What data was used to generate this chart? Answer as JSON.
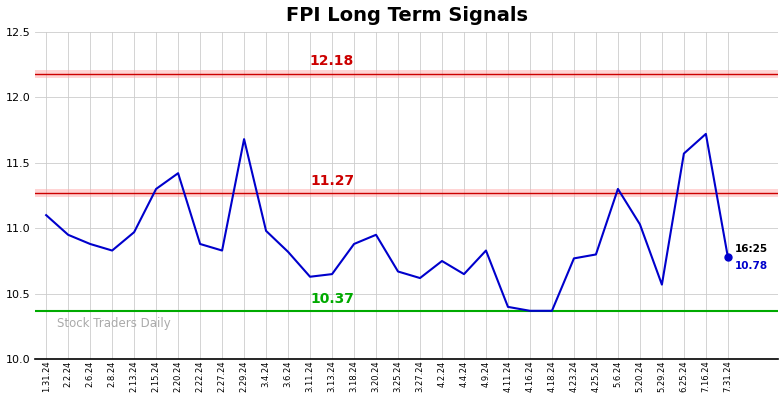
{
  "title": "FPI Long Term Signals",
  "x_labels": [
    "1.31.24",
    "2.2.24",
    "2.6.24",
    "2.8.24",
    "2.13.24",
    "2.15.24",
    "2.20.24",
    "2.22.24",
    "2.27.24",
    "2.29.24",
    "3.4.24",
    "3.6.24",
    "3.11.24",
    "3.13.24",
    "3.18.24",
    "3.20.24",
    "3.25.24",
    "3.27.24",
    "4.2.24",
    "4.4.24",
    "4.9.24",
    "4.11.24",
    "4.16.24",
    "4.18.24",
    "4.23.24",
    "4.25.24",
    "5.6.24",
    "5.20.24",
    "5.29.24",
    "6.25.24",
    "7.16.24",
    "7.31.24"
  ],
  "y_values": [
    11.1,
    10.95,
    10.88,
    10.83,
    10.97,
    11.3,
    11.42,
    10.88,
    10.83,
    11.68,
    10.98,
    10.82,
    10.63,
    10.65,
    10.88,
    10.95,
    10.67,
    10.62,
    10.75,
    10.65,
    10.83,
    10.4,
    10.37,
    10.37,
    10.77,
    10.8,
    11.3,
    11.03,
    10.57,
    11.57,
    11.72,
    10.78
  ],
  "line_color": "#0000cc",
  "dot_color": "#0000cc",
  "hline_upper": 12.18,
  "hline_upper_color": "#cc0000",
  "hline_middle": 11.27,
  "hline_middle_color": "#cc0000",
  "hline_lower": 10.37,
  "hline_lower_color": "#00aa00",
  "ylim": [
    10.0,
    12.5
  ],
  "yticks": [
    10.0,
    10.5,
    11.0,
    11.5,
    12.0,
    12.5
  ],
  "watermark": "Stock Traders Daily",
  "watermark_color": "#aaaaaa",
  "annotation_upper_label": "12.18",
  "annotation_upper_color": "#cc0000",
  "annotation_middle_label": "11.27",
  "annotation_middle_color": "#cc0000",
  "annotation_lower_label": "10.37",
  "annotation_lower_color": "#00aa00",
  "last_label_time": "16:25",
  "last_label_value": "10.78",
  "bg_color": "#ffffff",
  "grid_color": "#cccccc"
}
